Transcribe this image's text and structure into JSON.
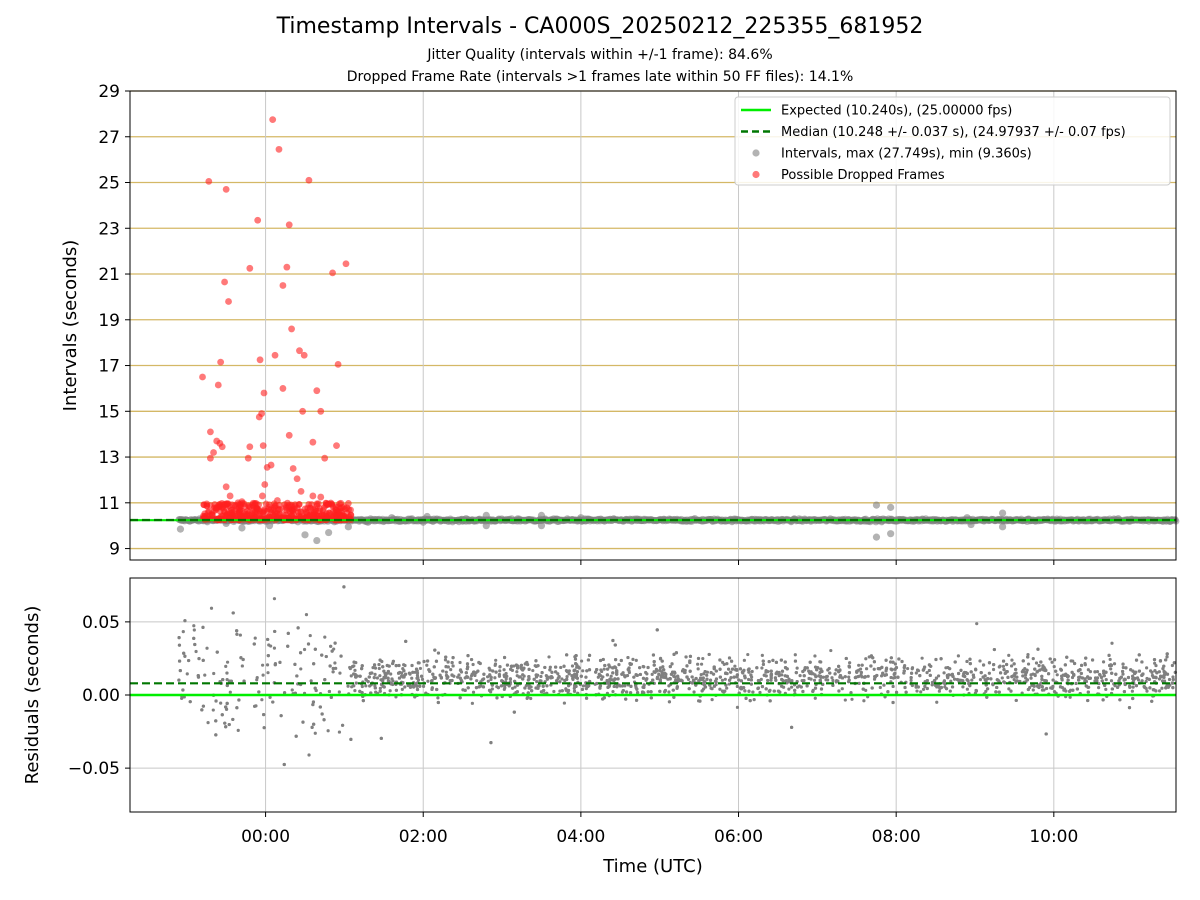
{
  "title": "Timestamp Intervals - CA000S_20250212_225355_681952",
  "subtitle_1": "Jitter Quality (intervals within +/-1 frame): 84.6%",
  "subtitle_2": "Dropped Frame Rate (intervals >1 frames late within 50 FF files): 14.1%",
  "colors": {
    "expected": "#00ee00",
    "median": "#007700",
    "intervals": "#808080",
    "dropped": "#ff2020",
    "hgrid_top": "#d4b866",
    "grid": "#c8c8c8"
  },
  "chart_data": [
    {
      "type": "scatter",
      "panel": "intervals",
      "ylabel": "Intervals (seconds)",
      "xlabel": "",
      "x_unit": "hours relative to 00:00 UTC",
      "xlim": [
        -1.72,
        11.55
      ],
      "ylim": [
        8.5,
        29
      ],
      "yticks": [
        9,
        11,
        13,
        15,
        17,
        19,
        21,
        23,
        25,
        27,
        29
      ],
      "xticks": [
        0,
        2,
        4,
        6,
        8,
        10
      ],
      "xtick_labels": [
        "00:00",
        "02:00",
        "04:00",
        "06:00",
        "08:00",
        "10:00"
      ],
      "legend_position": "upper right",
      "legend": [
        {
          "key": "expected",
          "label": "Expected (10.240s), (25.00000 fps)",
          "style": "solid-line"
        },
        {
          "key": "median",
          "label": "Median (10.248 +/- 0.037 s), (24.97937 +/- 0.07 fps)",
          "style": "dashed-line"
        },
        {
          "key": "intervals",
          "label": "Intervals, max (27.749s), min (9.360s)",
          "style": "marker"
        },
        {
          "key": "dropped",
          "label": "Possible Dropped Frames",
          "style": "marker"
        }
      ],
      "expected_y": 10.24,
      "median_y": 10.248,
      "dense_band": {
        "x_start": -1.1,
        "x_end": 11.55,
        "y_center": 10.24,
        "y_spread": 0.06
      },
      "dropped_band": {
        "x_start": -0.8,
        "x_end": 1.1,
        "y_min": 10.25,
        "y_max": 11.0
      },
      "series": [
        {
          "name": "Possible Dropped Frames",
          "points": [
            [
              -0.72,
              25.05
            ],
            [
              -0.5,
              24.7
            ],
            [
              -0.47,
              19.8
            ],
            [
              -0.52,
              20.65
            ],
            [
              -0.8,
              16.5
            ],
            [
              -0.6,
              16.15
            ],
            [
              -0.57,
              17.15
            ],
            [
              -0.7,
              14.1
            ],
            [
              -0.62,
              13.7
            ],
            [
              -0.58,
              13.6
            ],
            [
              -0.66,
              13.2
            ],
            [
              -0.55,
              13.45
            ],
            [
              -0.7,
              12.95
            ],
            [
              -0.5,
              11.7
            ],
            [
              -0.45,
              11.3
            ],
            [
              -0.2,
              21.25
            ],
            [
              -0.1,
              23.35
            ],
            [
              -0.07,
              17.25
            ],
            [
              -0.05,
              14.9
            ],
            [
              -0.08,
              14.75
            ],
            [
              -0.02,
              15.8
            ],
            [
              -0.03,
              13.5
            ],
            [
              -0.2,
              13.45
            ],
            [
              -0.22,
              12.95
            ],
            [
              0.07,
              12.65
            ],
            [
              0.02,
              12.55
            ],
            [
              -0.01,
              11.8
            ],
            [
              -0.04,
              11.3
            ],
            [
              0.09,
              27.75
            ],
            [
              0.17,
              26.45
            ],
            [
              0.12,
              17.45
            ],
            [
              0.22,
              20.5
            ],
            [
              0.3,
              23.15
            ],
            [
              0.27,
              21.3
            ],
            [
              0.33,
              18.6
            ],
            [
              0.22,
              16.0
            ],
            [
              0.3,
              13.95
            ],
            [
              0.35,
              12.5
            ],
            [
              0.4,
              12.05
            ],
            [
              0.43,
              17.65
            ],
            [
              0.49,
              17.45
            ],
            [
              0.47,
              15.0
            ],
            [
              0.55,
              25.1
            ],
            [
              0.6,
              13.65
            ],
            [
              0.65,
              15.9
            ],
            [
              0.7,
              15.0
            ],
            [
              0.75,
              12.95
            ],
            [
              0.6,
              11.3
            ],
            [
              0.7,
              11.25
            ],
            [
              0.85,
              21.05
            ],
            [
              0.92,
              17.05
            ],
            [
              0.9,
              13.5
            ],
            [
              1.02,
              21.45
            ],
            [
              0.45,
              11.5
            ],
            [
              0.15,
              11.1
            ],
            [
              -0.3,
              11.05
            ],
            [
              -0.35,
              11.0
            ],
            [
              0.8,
              10.95
            ]
          ]
        },
        {
          "name": "Intervals",
          "points": [
            [
              -1.08,
              9.85
            ],
            [
              -0.5,
              10.1
            ],
            [
              -0.3,
              9.9
            ],
            [
              0.05,
              10.0
            ],
            [
              0.5,
              9.6
            ],
            [
              0.65,
              9.35
            ],
            [
              0.8,
              9.7
            ],
            [
              1.05,
              9.95
            ],
            [
              1.3,
              10.15
            ],
            [
              1.6,
              10.35
            ],
            [
              2.0,
              10.15
            ],
            [
              2.05,
              10.4
            ],
            [
              2.5,
              10.2
            ],
            [
              2.8,
              10.45
            ],
            [
              2.8,
              10.0
            ],
            [
              3.2,
              10.3
            ],
            [
              3.5,
              10.45
            ],
            [
              3.5,
              10.0
            ],
            [
              4.0,
              10.35
            ],
            [
              4.3,
              10.2
            ],
            [
              7.75,
              10.9
            ],
            [
              7.93,
              10.8
            ],
            [
              7.75,
              9.5
            ],
            [
              7.93,
              9.65
            ],
            [
              8.9,
              10.35
            ],
            [
              8.95,
              10.05
            ],
            [
              9.35,
              10.55
            ],
            [
              9.35,
              9.95
            ],
            [
              11.5,
              10.25
            ]
          ]
        }
      ]
    },
    {
      "type": "scatter",
      "panel": "residuals",
      "ylabel": "Residuals (seconds)",
      "xlabel": "Time (UTC)",
      "xlim": [
        -1.72,
        11.55
      ],
      "ylim": [
        -0.08,
        0.08
      ],
      "yticks": [
        -0.05,
        0.0,
        0.05
      ],
      "ytick_labels": [
        "−0.05",
        "0.00",
        "0.05"
      ],
      "xticks": [
        0,
        2,
        4,
        6,
        8,
        10
      ],
      "xtick_labels": [
        "00:00",
        "02:00",
        "04:00",
        "06:00",
        "08:00",
        "10:00"
      ],
      "expected_y": 0.0,
      "median_y": 0.008,
      "x_start": -1.1,
      "x_end": 11.55,
      "core_center": 0.012,
      "core_spread": 0.014,
      "early_window": [
        -1.1,
        1.05
      ]
    }
  ]
}
